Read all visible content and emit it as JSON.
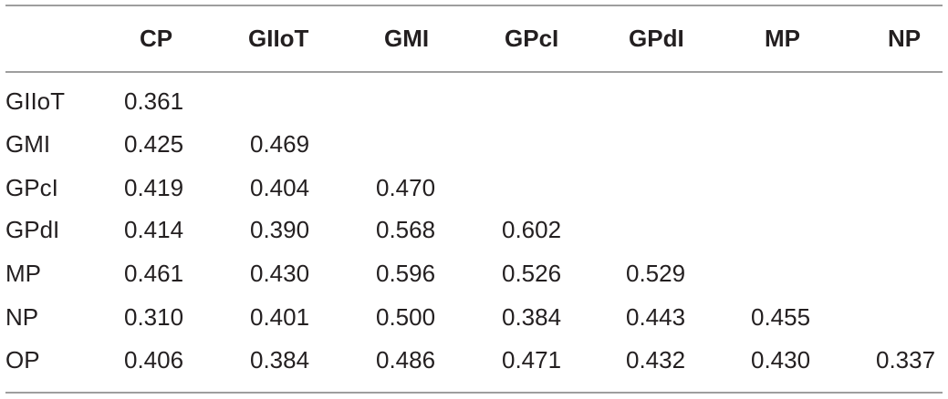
{
  "table": {
    "columns": [
      "",
      "CP",
      "GIIoT",
      "GMI",
      "GPcI",
      "GPdI",
      "MP",
      "NP"
    ],
    "rows": [
      {
        "label": "GIIoT",
        "values": [
          "0.361",
          "",
          "",
          "",
          "",
          "",
          ""
        ]
      },
      {
        "label": "GMI",
        "values": [
          "0.425",
          "0.469",
          "",
          "",
          "",
          "",
          ""
        ]
      },
      {
        "label": "GPcI",
        "values": [
          "0.419",
          "0.404",
          "0.470",
          "",
          "",
          "",
          ""
        ]
      },
      {
        "label": "GPdI",
        "values": [
          "0.414",
          "0.390",
          "0.568",
          "0.602",
          "",
          "",
          ""
        ]
      },
      {
        "label": "MP",
        "values": [
          "0.461",
          "0.430",
          "0.596",
          "0.526",
          "0.529",
          "",
          ""
        ]
      },
      {
        "label": "NP",
        "values": [
          "0.310",
          "0.401",
          "0.500",
          "0.384",
          "0.443",
          "0.455",
          ""
        ]
      },
      {
        "label": "OP",
        "values": [
          "0.406",
          "0.384",
          "0.486",
          "0.471",
          "0.432",
          "0.430",
          "0.337"
        ]
      }
    ]
  }
}
